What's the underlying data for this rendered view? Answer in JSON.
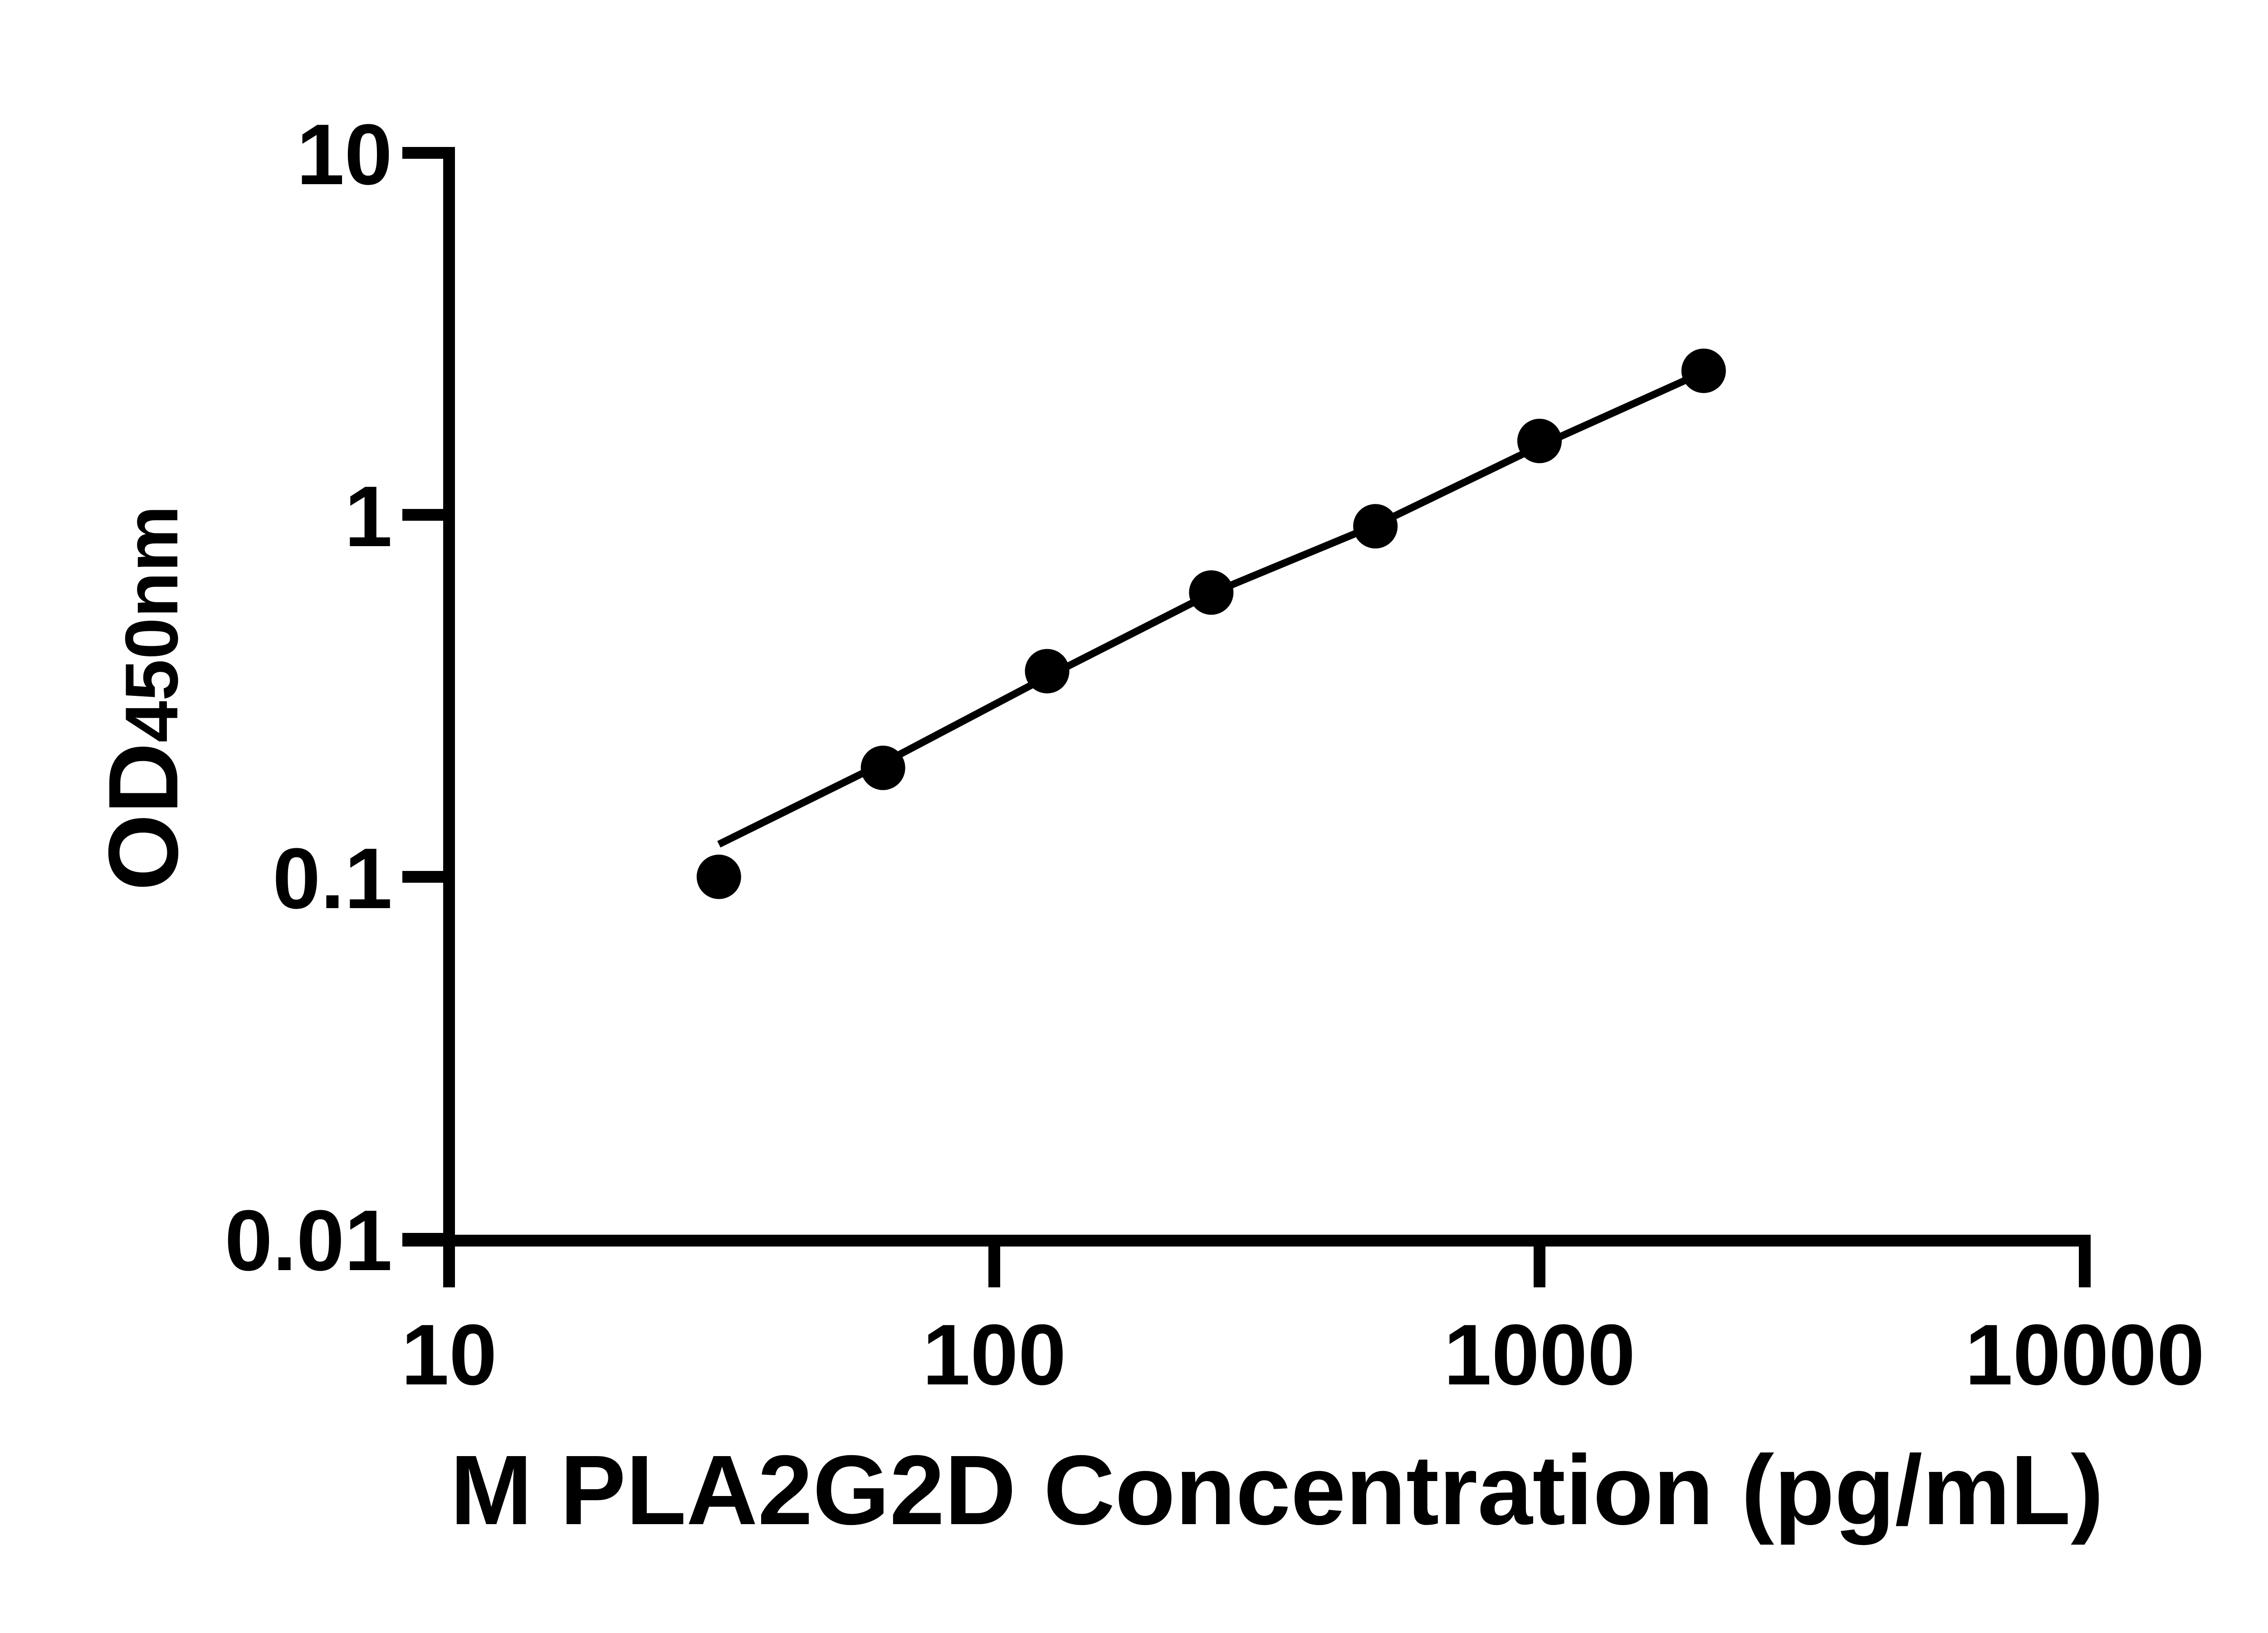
{
  "chart_data": {
    "type": "scatter",
    "xlabel": "M PLA2G2D Concentration (pg/mL)",
    "ylabel_main": "OD",
    "ylabel_sub": "450nm",
    "x_scale": "log",
    "y_scale": "log",
    "xlim": [
      10,
      10000
    ],
    "ylim": [
      0.01,
      10
    ],
    "x_ticks": [
      10,
      100,
      1000,
      10000
    ],
    "y_ticks": [
      10,
      1,
      0.1,
      0.01
    ],
    "points": [
      {
        "x": 31.25,
        "y": 0.1
      },
      {
        "x": 62.5,
        "y": 0.2
      },
      {
        "x": 125,
        "y": 0.37
      },
      {
        "x": 250,
        "y": 0.61
      },
      {
        "x": 500,
        "y": 0.93
      },
      {
        "x": 1000,
        "y": 1.6
      },
      {
        "x": 2000,
        "y": 2.5
      }
    ],
    "fit_line": [
      {
        "x": 31.25,
        "y": 0.123
      },
      {
        "x": 62.5,
        "y": 0.206
      },
      {
        "x": 125,
        "y": 0.357
      },
      {
        "x": 250,
        "y": 0.607
      },
      {
        "x": 500,
        "y": 0.936
      },
      {
        "x": 1000,
        "y": 1.55
      },
      {
        "x": 2000,
        "y": 2.48
      }
    ],
    "grid": false,
    "legend": false,
    "marker": "filled-circle",
    "colors": {
      "axis": "#000000",
      "marker": "#000000",
      "line": "#000000",
      "background": "#ffffff"
    }
  }
}
